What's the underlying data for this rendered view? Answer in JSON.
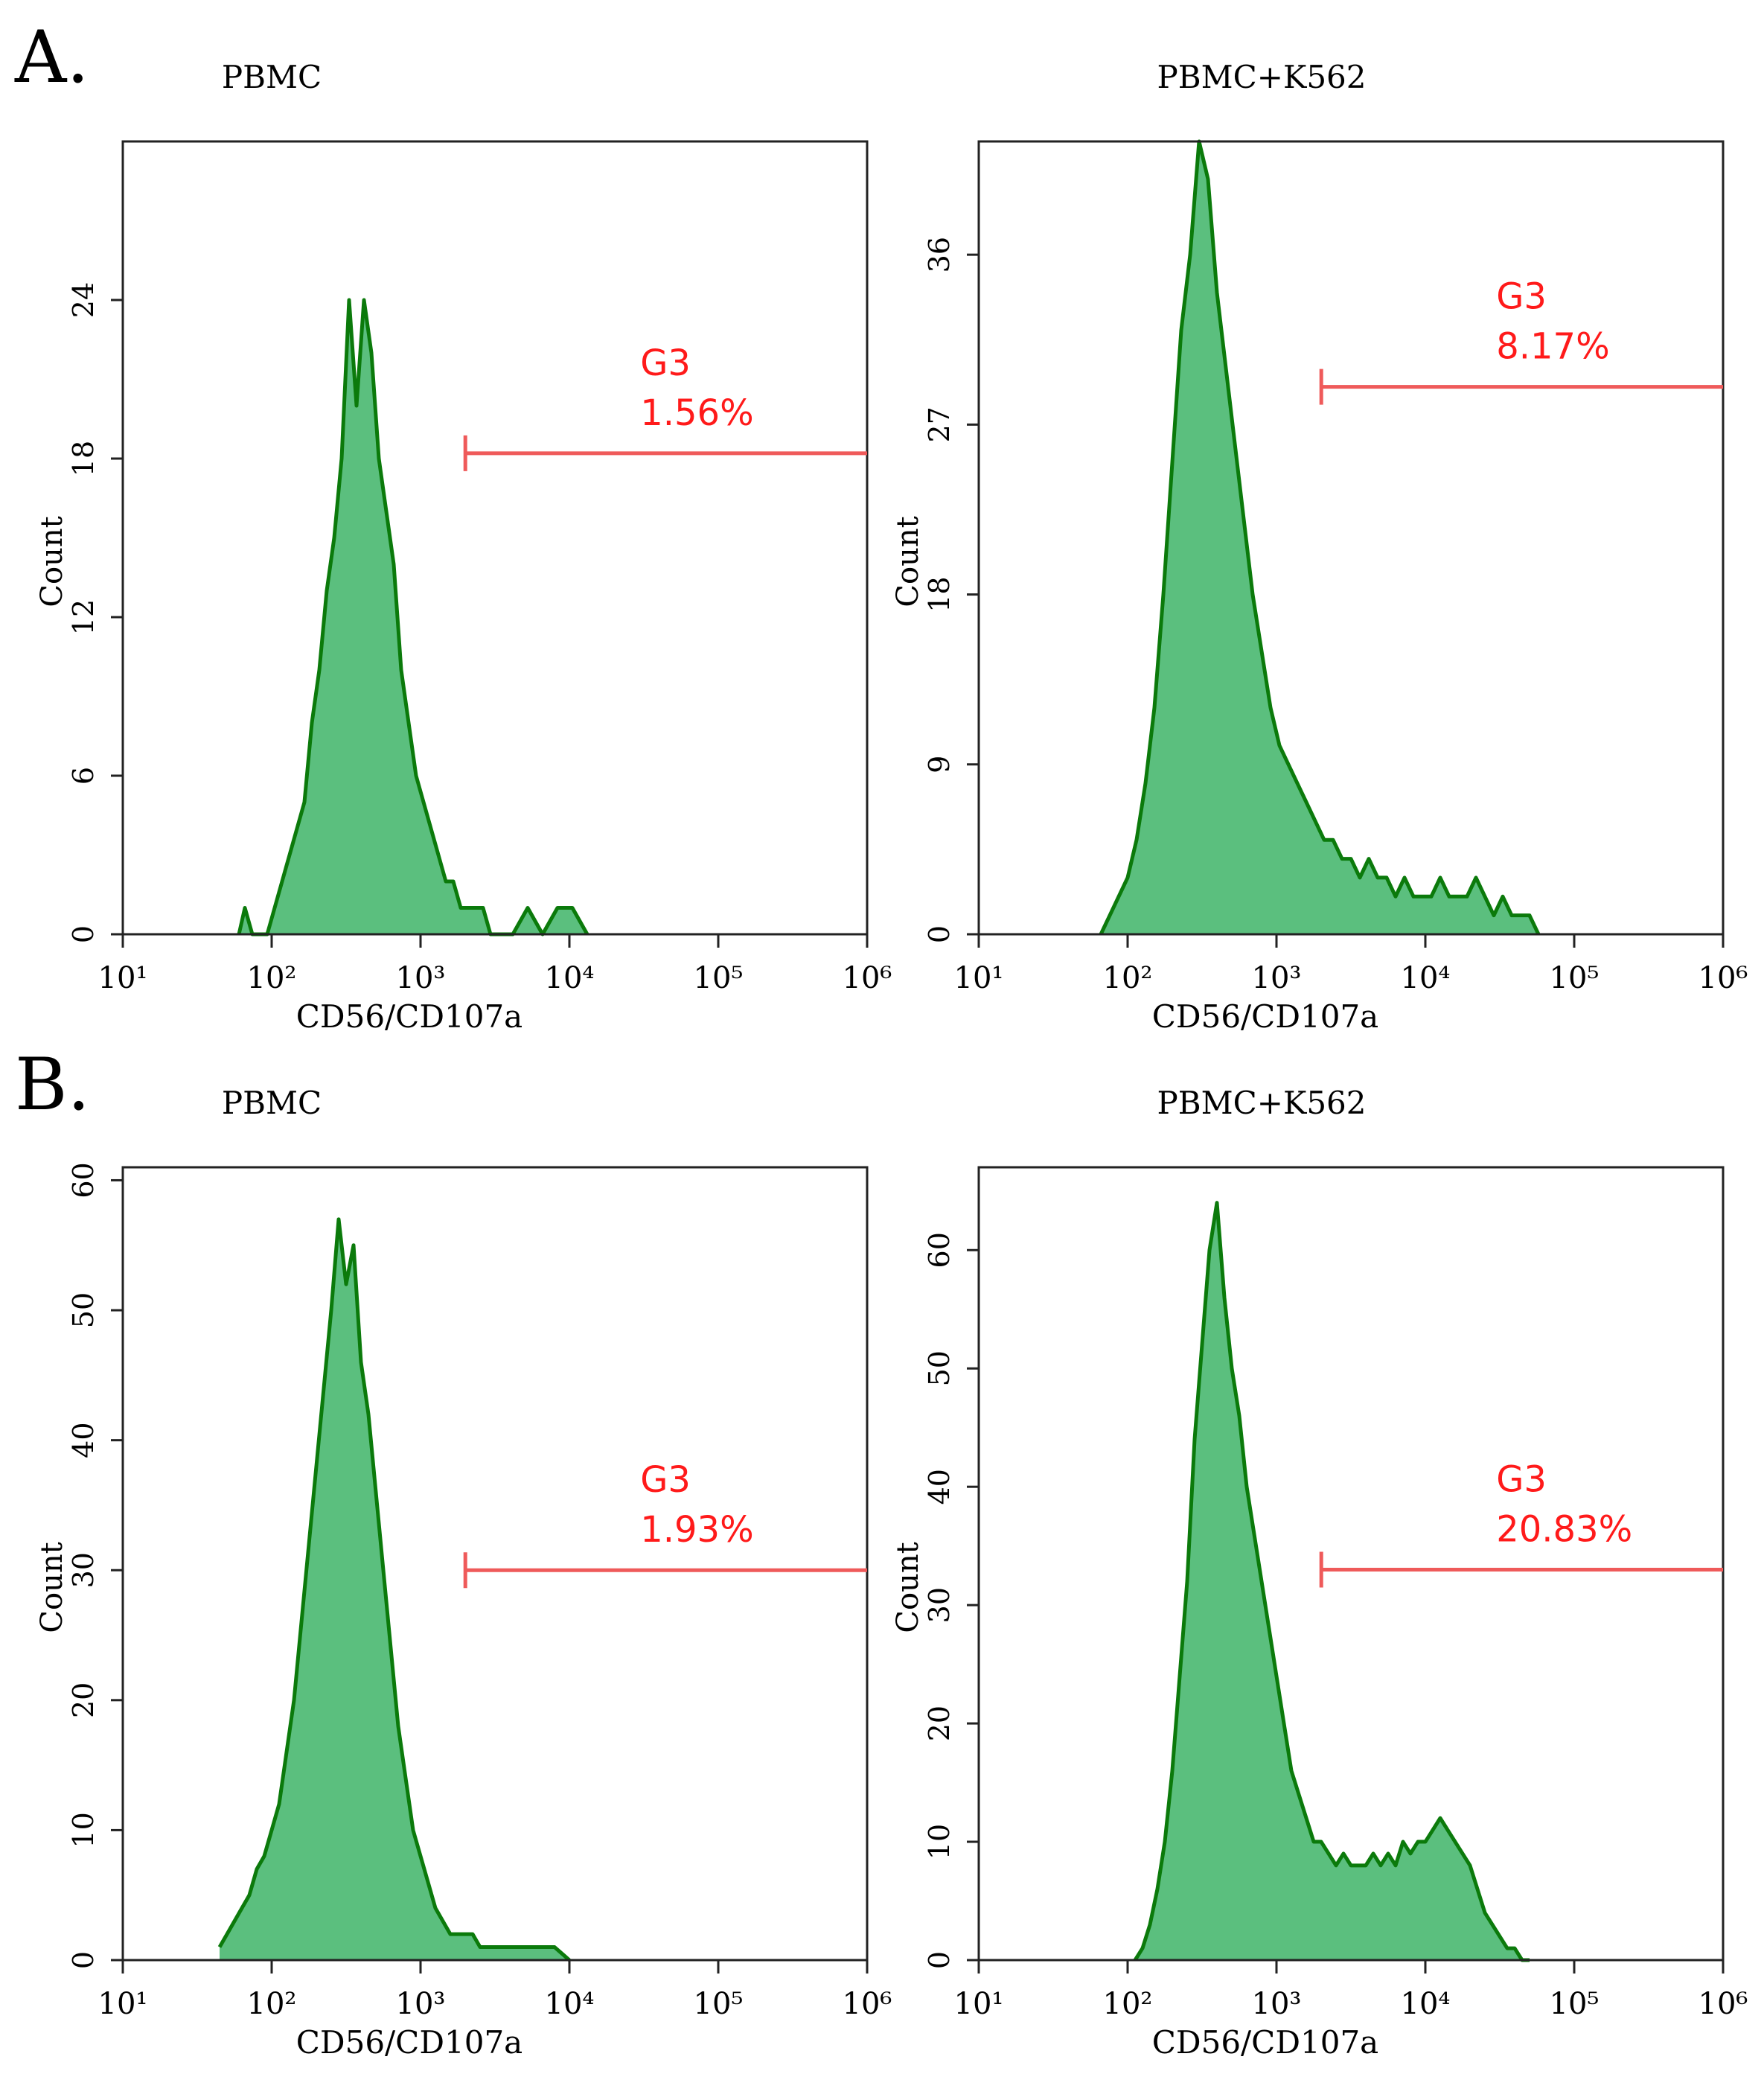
{
  "figure": {
    "panel_labels": [
      "A.",
      "B."
    ]
  },
  "colors": {
    "fill": "#5bbf7e",
    "line": "#0b7a0b",
    "gate": "#ef5a5a",
    "gate_text": "#ff1a1a",
    "axis": "#222222"
  },
  "chart_data": [
    {
      "type": "area",
      "id": "A-left",
      "title": "PBMC",
      "xlabel": "CD56/CD107a",
      "ylabel": "Count",
      "x_scale": "log10",
      "xlim": [
        10,
        1000000
      ],
      "x_ticks": [
        "10¹",
        "10²",
        "10³",
        "10⁴",
        "10⁵",
        "10⁶"
      ],
      "ylim": [
        0,
        30
      ],
      "y_ticks": [
        0,
        6,
        12,
        18,
        24
      ],
      "gate": {
        "name": "G3",
        "percent": "1.56%",
        "start": 2000,
        "level": 18.2
      },
      "series": {
        "x_log10": [
          1.78,
          1.82,
          1.87,
          1.92,
          1.97,
          2.02,
          2.07,
          2.12,
          2.17,
          2.22,
          2.27,
          2.32,
          2.37,
          2.42,
          2.47,
          2.52,
          2.57,
          2.62,
          2.67,
          2.72,
          2.77,
          2.82,
          2.87,
          2.92,
          2.97,
          3.02,
          3.07,
          3.12,
          3.17,
          3.22,
          3.27,
          3.32,
          3.37,
          3.42,
          3.47,
          3.52,
          3.62,
          3.72,
          3.82,
          3.92,
          4.02,
          4.12
        ],
        "counts": [
          0,
          1,
          0,
          0,
          0,
          1,
          2,
          3,
          4,
          5,
          8,
          10,
          13,
          15,
          18,
          24,
          20,
          24,
          22,
          18,
          16,
          14,
          10,
          8,
          6,
          5,
          4,
          3,
          2,
          2,
          1,
          1,
          1,
          1,
          0,
          0,
          0,
          1,
          0,
          1,
          1,
          0
        ]
      }
    },
    {
      "type": "area",
      "id": "A-right",
      "title": "PBMC+K562",
      "xlabel": "CD56/CD107a",
      "ylabel": "Count",
      "x_scale": "log10",
      "xlim": [
        10,
        1000000
      ],
      "x_ticks": [
        "10¹",
        "10²",
        "10³",
        "10⁴",
        "10⁵",
        "10⁶"
      ],
      "ylim": [
        0,
        42
      ],
      "y_ticks": [
        0,
        9,
        18,
        27,
        36
      ],
      "gate": {
        "name": "G3",
        "percent": "8.17%",
        "start": 2000,
        "level": 29
      },
      "series": {
        "x_log10": [
          1.82,
          1.88,
          1.94,
          2.0,
          2.06,
          2.12,
          2.18,
          2.24,
          2.3,
          2.36,
          2.42,
          2.48,
          2.54,
          2.6,
          2.66,
          2.72,
          2.78,
          2.84,
          2.9,
          2.96,
          3.02,
          3.08,
          3.14,
          3.2,
          3.26,
          3.32,
          3.38,
          3.44,
          3.5,
          3.56,
          3.62,
          3.68,
          3.74,
          3.8,
          3.86,
          3.92,
          3.98,
          4.04,
          4.1,
          4.16,
          4.22,
          4.28,
          4.34,
          4.4,
          4.46,
          4.52,
          4.58,
          4.64,
          4.7,
          4.76
        ],
        "counts": [
          0,
          1,
          2,
          3,
          5,
          8,
          12,
          18,
          25,
          32,
          36,
          42,
          40,
          34,
          30,
          26,
          22,
          18,
          15,
          12,
          10,
          9,
          8,
          7,
          6,
          5,
          5,
          4,
          4,
          3,
          4,
          3,
          3,
          2,
          3,
          2,
          2,
          2,
          3,
          2,
          2,
          2,
          3,
          2,
          1,
          2,
          1,
          1,
          1,
          0
        ]
      }
    },
    {
      "type": "area",
      "id": "B-left",
      "title": "PBMC",
      "xlabel": "CD56/CD107a",
      "ylabel": "Count",
      "x_scale": "log10",
      "xlim": [
        10,
        1000000
      ],
      "x_ticks": [
        "10¹",
        "10²",
        "10³",
        "10⁴",
        "10⁵",
        "10⁶"
      ],
      "ylim": [
        0,
        61
      ],
      "y_ticks": [
        0,
        10,
        20,
        30,
        40,
        50,
        60
      ],
      "gate": {
        "name": "G3",
        "percent": "1.93%",
        "start": 2000,
        "level": 30
      },
      "series": {
        "x_log10": [
          1.65,
          1.7,
          1.75,
          1.8,
          1.85,
          1.9,
          1.95,
          2.0,
          2.05,
          2.1,
          2.15,
          2.2,
          2.25,
          2.3,
          2.35,
          2.4,
          2.45,
          2.5,
          2.55,
          2.6,
          2.65,
          2.7,
          2.75,
          2.8,
          2.85,
          2.9,
          2.95,
          3.0,
          3.05,
          3.1,
          3.15,
          3.2,
          3.25,
          3.3,
          3.35,
          3.4,
          3.5,
          3.6,
          3.7,
          3.8,
          3.9,
          4.0
        ],
        "counts": [
          1,
          2,
          3,
          4,
          5,
          7,
          8,
          10,
          12,
          16,
          20,
          26,
          32,
          38,
          44,
          50,
          57,
          52,
          55,
          46,
          42,
          36,
          30,
          24,
          18,
          14,
          10,
          8,
          6,
          4,
          3,
          2,
          2,
          2,
          2,
          1,
          1,
          1,
          1,
          1,
          1,
          0
        ]
      }
    },
    {
      "type": "area",
      "id": "B-right",
      "title": "PBMC+K562",
      "xlabel": "CD56/CD107a",
      "ylabel": "Count",
      "x_scale": "log10",
      "xlim": [
        10,
        1000000
      ],
      "x_ticks": [
        "10¹",
        "10²",
        "10³",
        "10⁴",
        "10⁵",
        "10⁶"
      ],
      "ylim": [
        0,
        67
      ],
      "y_ticks": [
        0,
        10,
        20,
        30,
        40,
        50,
        60
      ],
      "gate": {
        "name": "G3",
        "percent": "20.83%",
        "start": 2000,
        "level": 33
      },
      "series": {
        "x_log10": [
          2.05,
          2.1,
          2.15,
          2.2,
          2.25,
          2.3,
          2.35,
          2.4,
          2.45,
          2.5,
          2.55,
          2.6,
          2.65,
          2.7,
          2.75,
          2.8,
          2.85,
          2.9,
          2.95,
          3.0,
          3.05,
          3.1,
          3.15,
          3.2,
          3.25,
          3.3,
          3.35,
          3.4,
          3.45,
          3.5,
          3.55,
          3.6,
          3.65,
          3.7,
          3.75,
          3.8,
          3.85,
          3.9,
          3.95,
          4.0,
          4.05,
          4.1,
          4.15,
          4.2,
          4.25,
          4.3,
          4.35,
          4.4,
          4.45,
          4.5,
          4.55,
          4.6,
          4.65,
          4.7
        ],
        "counts": [
          0,
          1,
          3,
          6,
          10,
          16,
          24,
          32,
          44,
          52,
          60,
          64,
          56,
          50,
          46,
          40,
          36,
          32,
          28,
          24,
          20,
          16,
          14,
          12,
          10,
          10,
          9,
          8,
          9,
          8,
          8,
          8,
          9,
          8,
          9,
          8,
          10,
          9,
          10,
          10,
          11,
          12,
          11,
          10,
          9,
          8,
          6,
          4,
          3,
          2,
          1,
          1,
          0,
          0
        ]
      }
    }
  ]
}
